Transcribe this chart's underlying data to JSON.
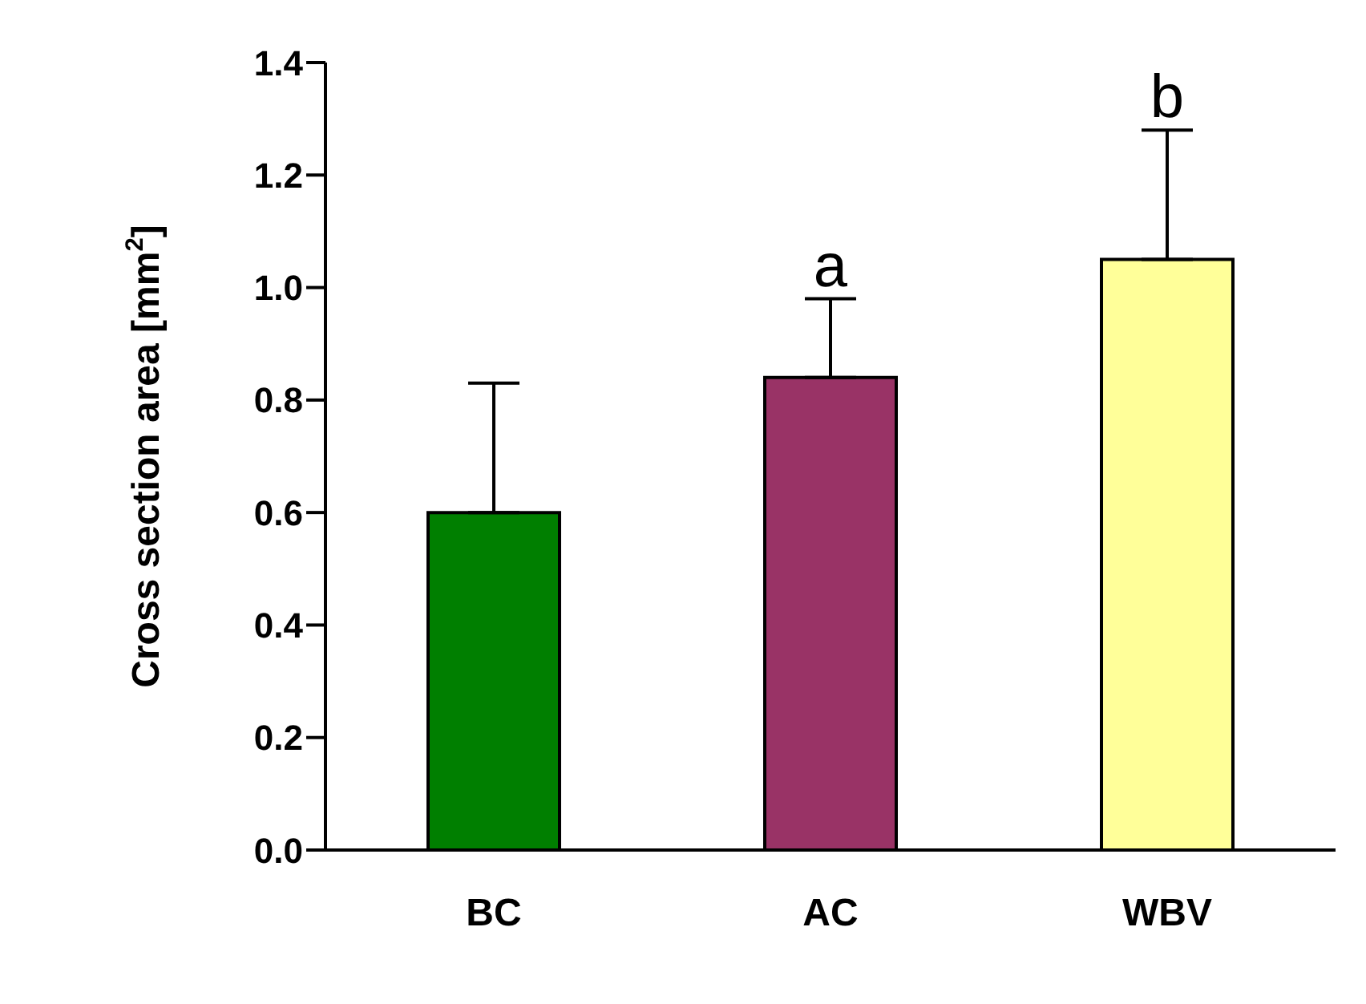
{
  "chart_data": {
    "type": "bar",
    "ylabel": "Cross section area [mm$^{2}$]",
    "categories": [
      "BC",
      "AC",
      "WBV"
    ],
    "values": [
      0.6,
      0.84,
      1.05
    ],
    "colors": [
      "#007f00",
      "#993366",
      "#ffff99"
    ],
    "errors": [
      [
        0.6,
        0.83
      ],
      [
        0.84,
        0.98
      ],
      [
        1.05,
        1.28
      ]
    ],
    "ylim": [
      0,
      1.4
    ],
    "yticks": [
      {
        "value": 0,
        "label": "0.0"
      },
      0.2,
      0.4,
      0.6,
      0.8,
      {
        "value": 1,
        "label": "1.0"
      },
      1.2,
      1.4
    ],
    "annotations": [
      {
        "text": "a",
        "x": "AC",
        "y": 0.98
      },
      {
        "text": "b",
        "x": "WBV",
        "y": 1.28
      }
    ],
    "grid": false,
    "legend": false
  }
}
